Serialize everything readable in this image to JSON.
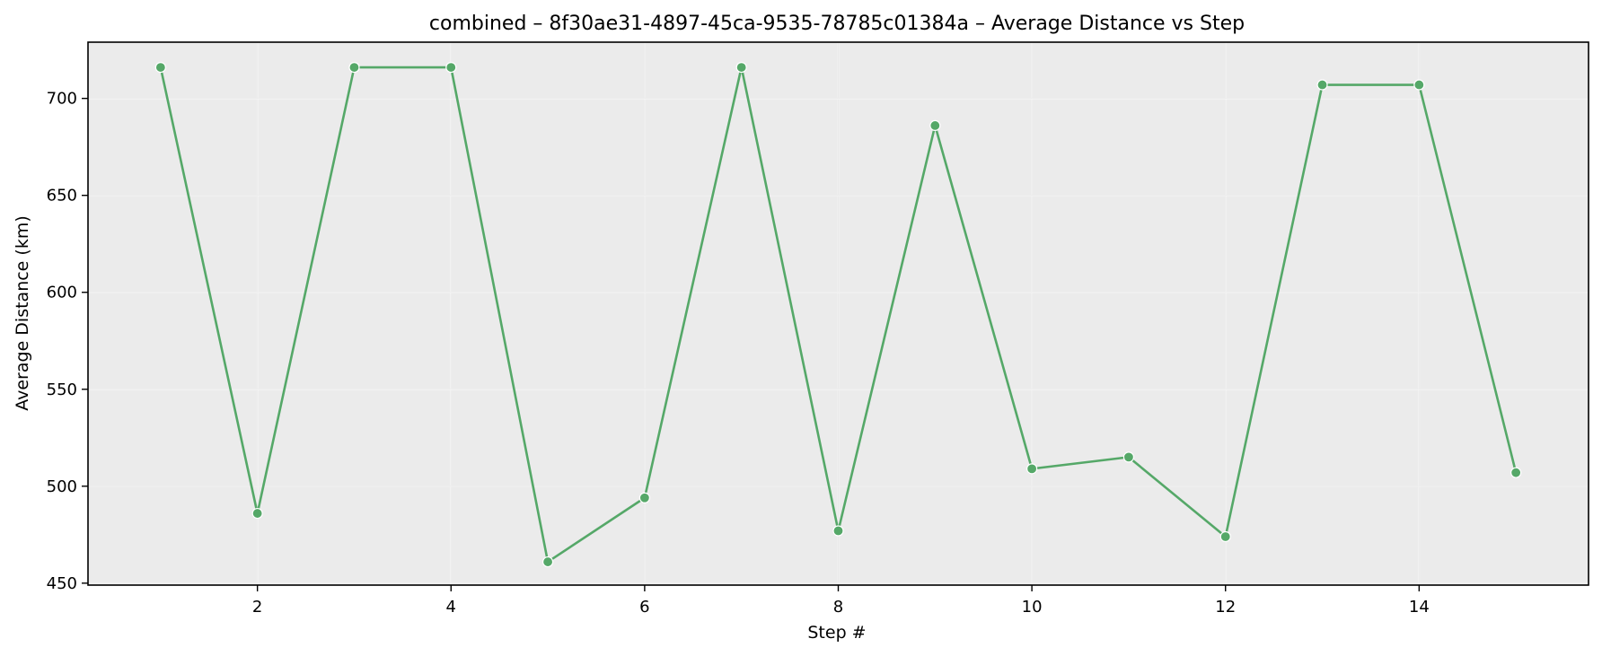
{
  "chart_data": {
    "type": "line",
    "title": "combined – 8f30ae31-4897-45ca-9535-78785c01384a – Average Distance vs Step",
    "xlabel": "Step #",
    "ylabel": "Average Distance (km)",
    "x": [
      1,
      2,
      3,
      4,
      5,
      6,
      7,
      8,
      9,
      10,
      11,
      12,
      13,
      14,
      15
    ],
    "series": [
      {
        "values": [
          716,
          486,
          716,
          716,
          461,
          494,
          716,
          477,
          686,
          509,
          515,
          474,
          707,
          707,
          507
        ]
      }
    ],
    "xlim": [
      0.25,
      15.75
    ],
    "ylim": [
      449,
      729
    ],
    "xticks": [
      2,
      4,
      6,
      8,
      10,
      12,
      14
    ],
    "yticks": [
      450,
      500,
      550,
      600,
      650,
      700
    ],
    "grid": true,
    "line_color": "#55a868",
    "grid_color": "#e5e5e5",
    "axes_facecolor": "#ebebeb",
    "axes_edgecolor": "#000000"
  }
}
